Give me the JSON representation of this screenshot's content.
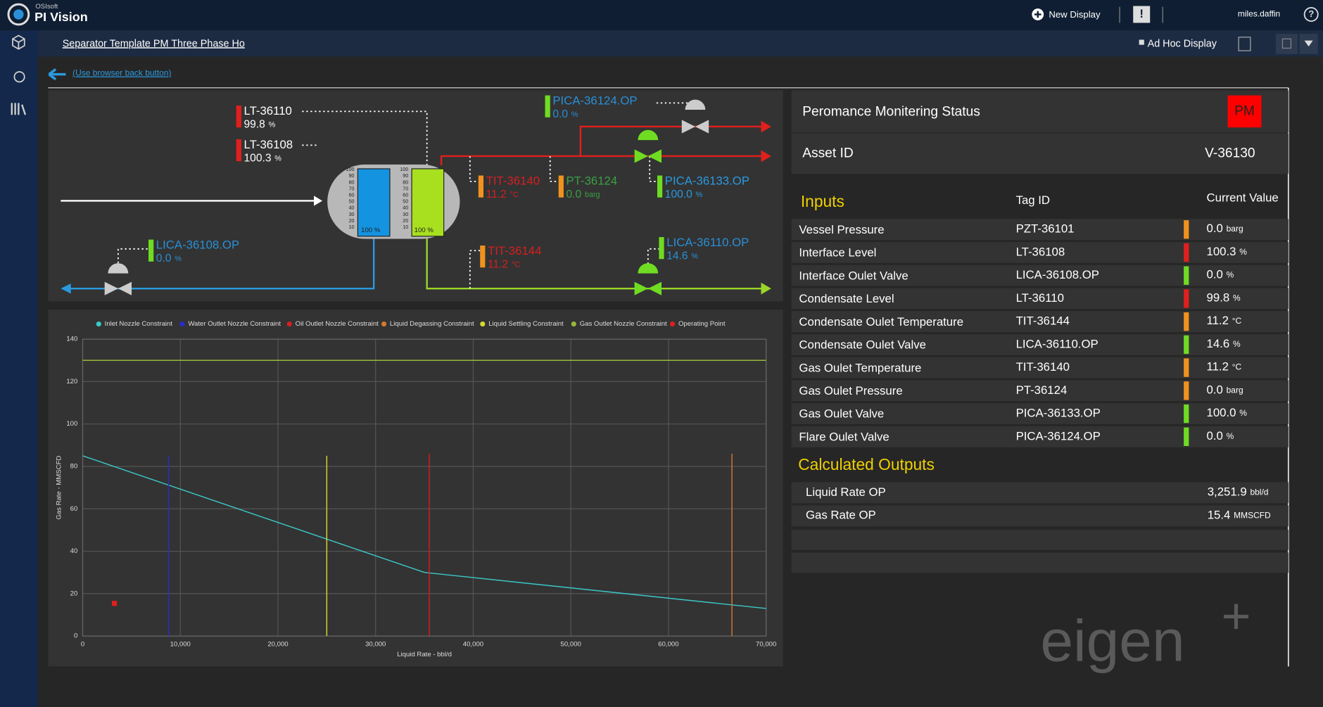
{
  "header": {
    "brand_small": "OSIsoft",
    "brand": "PI Vision",
    "new_display": "New Display",
    "user": "miles.daffin",
    "help": "?"
  },
  "toolbar": {
    "display_name": "Separator Template PM Three Phase Ho",
    "ad_hoc": "Ad Hoc Display"
  },
  "back_link": "(Use browser back button)",
  "diagram": {
    "gauge_scale": [
      "100",
      "90",
      "80",
      "70",
      "60",
      "50",
      "40",
      "30",
      "20",
      "10"
    ],
    "gauge_levels": [
      "100 %",
      "100 %"
    ],
    "tags": [
      {
        "name": "LT-36110",
        "value": "99.8",
        "unit": "%",
        "status_color": "#e0201c",
        "text_color": "#ffffff"
      },
      {
        "name": "LT-36108",
        "value": "100.3",
        "unit": "%",
        "status_color": "#e0201c",
        "text_color": "#ffffff"
      },
      {
        "name": "PICA-36124.OP",
        "value": "0.0",
        "unit": "%",
        "status_color": "#6fdc22",
        "text_color": "#2a8fd6"
      },
      {
        "name": "TIT-36140",
        "value": "11.2",
        "unit": "°C",
        "status_color": "#f0921e",
        "text_color": "#d42020"
      },
      {
        "name": "PT-36124",
        "value": "0.0",
        "unit": "barg",
        "status_color": "#f0921e",
        "text_color": "#3aa043"
      },
      {
        "name": "PICA-36133.OP",
        "value": "100.0",
        "unit": "%",
        "status_color": "#6fdc22",
        "text_color": "#2a9ae0"
      },
      {
        "name": "LICA-36108.OP",
        "value": "0.0",
        "unit": "%",
        "status_color": "#6fdc22",
        "text_color": "#2a8fd6"
      },
      {
        "name": "TIT-36144",
        "value": "11.2",
        "unit": "°C",
        "status_color": "#f0921e",
        "text_color": "#d42020"
      },
      {
        "name": "LICA-36110.OP",
        "value": "14.6",
        "unit": "%",
        "status_color": "#6fdc22",
        "text_color": "#2a8fd6"
      }
    ]
  },
  "chart": {
    "type": "line",
    "xlabel": "Liquid Rate - bbl/d",
    "ylabel": "Gas Rate - MMSCFD",
    "xlim": [
      0,
      70000
    ],
    "ylim": [
      0,
      140
    ],
    "xticks": [
      0,
      {
        "value": 10000,
        "label": "10,000"
      },
      {
        "value": 20000,
        "label": "20,000"
      },
      {
        "value": 30000,
        "label": "30,000"
      },
      {
        "value": 40000,
        "label": "40,000"
      },
      {
        "value": 50000,
        "label": "50,000"
      },
      {
        "value": 60000,
        "label": "60,000"
      },
      {
        "value": 70000,
        "label": "70,000"
      }
    ],
    "yticks": [
      0,
      20,
      40,
      60,
      80,
      100,
      120,
      140
    ],
    "grid": true,
    "series": [
      {
        "name": "Inlet Nozzle Constraint",
        "color": "#3cc8c8",
        "x": [
          0,
          35000,
          70000
        ],
        "values": [
          85,
          30,
          13
        ]
      },
      {
        "name": "Water Outlet Nozzle Constraint",
        "color": "#2a2ad0",
        "x": [
          8800,
          8800
        ],
        "values": [
          0,
          85
        ]
      },
      {
        "name": "Oil Outlet Nozzle Constraint",
        "color": "#d42020",
        "x": [
          35500,
          35500
        ],
        "values": [
          0,
          86
        ]
      },
      {
        "name": "Liquid Degassing Constraint",
        "color": "#d07a30",
        "x": [
          66500,
          66500
        ],
        "values": [
          0,
          86
        ]
      },
      {
        "name": "Liquid Settling Constraint",
        "color": "#d8d830",
        "x": [
          25000,
          25000
        ],
        "values": [
          0,
          85
        ]
      },
      {
        "name": "Gas Outlet Nozzle Constraint",
        "color": "#9ab83a",
        "x": [
          0,
          70000
        ],
        "values": [
          130,
          130
        ]
      },
      {
        "name": "Operating Point",
        "color": "#e0201c",
        "x": [
          3251.9
        ],
        "values": [
          15.4
        ]
      }
    ]
  },
  "panel": {
    "title": "Peromance Monitering Status",
    "badge": "PM",
    "asset_label": "Asset ID",
    "asset_id": "V-36130",
    "inputs_title": "Inputs",
    "tag_header": "Tag ID",
    "value_header": "Current Value",
    "inputs": [
      {
        "name": "Vessel Pressure",
        "tag": "PZT-36101",
        "value": "0.0",
        "unit": "barg",
        "status_color": "#f0921e"
      },
      {
        "name": "Interface Level",
        "tag": "LT-36108",
        "value": "100.3",
        "unit": "%",
        "status_color": "#e0201c"
      },
      {
        "name": "Interface Oulet Valve",
        "tag": "LICA-36108.OP",
        "value": "0.0",
        "unit": "%",
        "status_color": "#6fdc22"
      },
      {
        "name": "Condensate Level",
        "tag": "LT-36110",
        "value": "99.8",
        "unit": "%",
        "status_color": "#e0201c"
      },
      {
        "name": "Condensate Oulet Temperature",
        "tag": "TIT-36144",
        "value": "11.2",
        "unit": "°C",
        "status_color": "#f0921e"
      },
      {
        "name": "Condensate Oulet Valve",
        "tag": "LICA-36110.OP",
        "value": "14.6",
        "unit": "%",
        "status_color": "#6fdc22"
      },
      {
        "name": "Gas Oulet Temperature",
        "tag": "TIT-36140",
        "value": "11.2",
        "unit": "°C",
        "status_color": "#f0921e"
      },
      {
        "name": "Gas Oulet Pressure",
        "tag": "PT-36124",
        "value": "0.0",
        "unit": "barg",
        "status_color": "#f0921e"
      },
      {
        "name": "Gas Oulet Valve",
        "tag": "PICA-36133.OP",
        "value": "100.0",
        "unit": "%",
        "status_color": "#6fdc22"
      },
      {
        "name": "Flare Oulet Valve",
        "tag": "PICA-36124.OP",
        "value": "0.0",
        "unit": "%",
        "status_color": "#6fdc22"
      }
    ],
    "outputs_title": "Calculated Outputs",
    "outputs": [
      {
        "name": "Liquid Rate OP",
        "value": "3,251.9",
        "unit": "bbl/d"
      },
      {
        "name": "Gas Rate OP",
        "value": "15.4",
        "unit": "MMSCFD"
      }
    ],
    "watermark": "eigen",
    "watermark_mark": "+"
  }
}
